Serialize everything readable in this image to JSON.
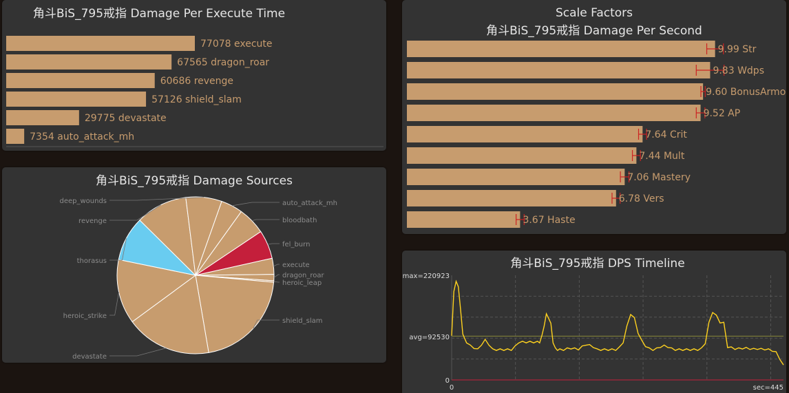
{
  "colors": {
    "panel": "#333333",
    "bar": "#c79c6e",
    "bar_text": "#c79c6e",
    "title": "#e6e6e6",
    "error_bar": "#cc2222",
    "pie_thorasus": "#69ccf0",
    "pie_fel_burn": "#c41f3b",
    "timeline_line": "#ffd21f",
    "avg_line": "#8a8a3a",
    "zero_line": "#c41f3b"
  },
  "charts": {
    "execute": {
      "title": "角斗BiS_795戒指 Damage Per Execute Time"
    },
    "scale": {
      "title_line1": "Scale Factors",
      "title_line2": "角斗BiS_795戒指 Damage Per Second"
    },
    "sources": {
      "title": "角斗BiS_795戒指 Damage Sources"
    },
    "timeline": {
      "title": "角斗BiS_795戒指 DPS Timeline",
      "max_label": "max=220923",
      "avg_label": "avg=92530",
      "zero_label": "0",
      "x_start_label": "0",
      "x_end_label": "sec=445"
    }
  },
  "chart_data": [
    {
      "type": "bar",
      "title": "角斗BiS_795戒指 Damage Per Execute Time",
      "orientation": "horizontal",
      "categories": [
        "execute",
        "dragon_roar",
        "revenge",
        "shield_slam",
        "devastate",
        "auto_attack_mh"
      ],
      "values": [
        77078,
        67565,
        60686,
        57126,
        29775,
        7354
      ],
      "labels": [
        "77078  execute",
        "67565  dragon_roar",
        "60686  revenge",
        "57126  shield_slam",
        "29775  devastate",
        "7354  auto_attack_mh"
      ],
      "xlim": [
        0,
        77078
      ]
    },
    {
      "type": "bar",
      "title": "Scale Factors",
      "subtitle": "角斗BiS_795戒指 Damage Per Second",
      "orientation": "horizontal",
      "categories": [
        "Str",
        "Wdps",
        "BonusArmor",
        "AP",
        "Crit",
        "Mult",
        "Mastery",
        "Vers",
        "Haste"
      ],
      "values": [
        9.99,
        9.83,
        9.6,
        9.52,
        7.64,
        7.44,
        7.06,
        6.78,
        3.67
      ],
      "error": [
        0.27,
        0.45,
        0.07,
        0.14,
        0.13,
        0.13,
        0.14,
        0.13,
        0.13
      ],
      "labels": [
        "9.99  Str",
        "9.83  Wdps",
        "9.60  BonusArmor",
        "9.52  AP",
        "7.64  Crit",
        "7.44  Mult",
        "7.06  Mastery",
        "6.78  Vers",
        "3.67  Haste"
      ],
      "xlim": [
        0,
        10.4
      ]
    },
    {
      "type": "pie",
      "title": "角斗BiS_795戒指 Damage Sources",
      "categories": [
        "auto_attack_mh",
        "bloodbath",
        "fel_burn",
        "execute",
        "dragon_roar",
        "heroic_leap",
        "shield_slam",
        "devastate",
        "heroic_strike",
        "thorasus",
        "revenge",
        "deep_wounds"
      ],
      "values": [
        4.5,
        5.7,
        5.9,
        3.3,
        1.3,
        0.3,
        20.9,
        17.6,
        13.3,
        9.2,
        10.6,
        7.4
      ],
      "colors": [
        "#c79c6e",
        "#c79c6e",
        "#c41f3b",
        "#c79c6e",
        "#c79c6e",
        "#c79c6e",
        "#c79c6e",
        "#c79c6e",
        "#c79c6e",
        "#69ccf0",
        "#c79c6e",
        "#c79c6e"
      ]
    },
    {
      "type": "line",
      "title": "角斗BiS_795戒指 DPS Timeline",
      "xlabel": "sec",
      "xlim": [
        0,
        445
      ],
      "ylim": [
        0,
        220923
      ],
      "max": 220923,
      "avg": 92530,
      "x": [
        0,
        3,
        6,
        9,
        12,
        15,
        20,
        25,
        30,
        35,
        40,
        45,
        50,
        55,
        60,
        65,
        70,
        75,
        80,
        85,
        90,
        95,
        100,
        105,
        110,
        115,
        118,
        121,
        124,
        127,
        130,
        133,
        136,
        139,
        142,
        145,
        150,
        155,
        160,
        165,
        170,
        175,
        180,
        185,
        190,
        195,
        200,
        205,
        210,
        215,
        220,
        225,
        230,
        235,
        240,
        245,
        250,
        255,
        260,
        265,
        270,
        275,
        280,
        285,
        290,
        295,
        300,
        305,
        310,
        315,
        320,
        325,
        330,
        335,
        340,
        345,
        350,
        355,
        360,
        365,
        370,
        375,
        380,
        385,
        390,
        395,
        400,
        405,
        410,
        415,
        420,
        425,
        430,
        435,
        440,
        445
      ],
      "y": [
        95000,
        185000,
        210000,
        195000,
        150000,
        95000,
        80000,
        72000,
        68000,
        64000,
        75000,
        84000,
        75000,
        64000,
        64000,
        64000,
        64000,
        64000,
        64000,
        70000,
        80000,
        80000,
        80000,
        80000,
        80000,
        80000,
        80000,
        92000,
        115000,
        138000,
        132000,
        118000,
        80000,
        66000,
        64000,
        64000,
        64000,
        66000,
        67000,
        66000,
        65000,
        70000,
        75000,
        73000,
        70000,
        64000,
        64000,
        64000,
        64000,
        64000,
        64000,
        68000,
        80000,
        112000,
        140000,
        130000,
        100000,
        82000,
        72000,
        66000,
        64000,
        66000,
        70000,
        72000,
        70000,
        66000,
        64000,
        64000,
        64000,
        64000,
        64000,
        64000,
        64000,
        66000,
        78000,
        120000,
        144000,
        135000,
        122000,
        120000,
        70000,
        68000,
        66000,
        66000,
        67000,
        67000,
        66000,
        65000,
        66000,
        65000,
        65000,
        64000,
        62000,
        58000,
        45000,
        30000
      ]
    }
  ]
}
